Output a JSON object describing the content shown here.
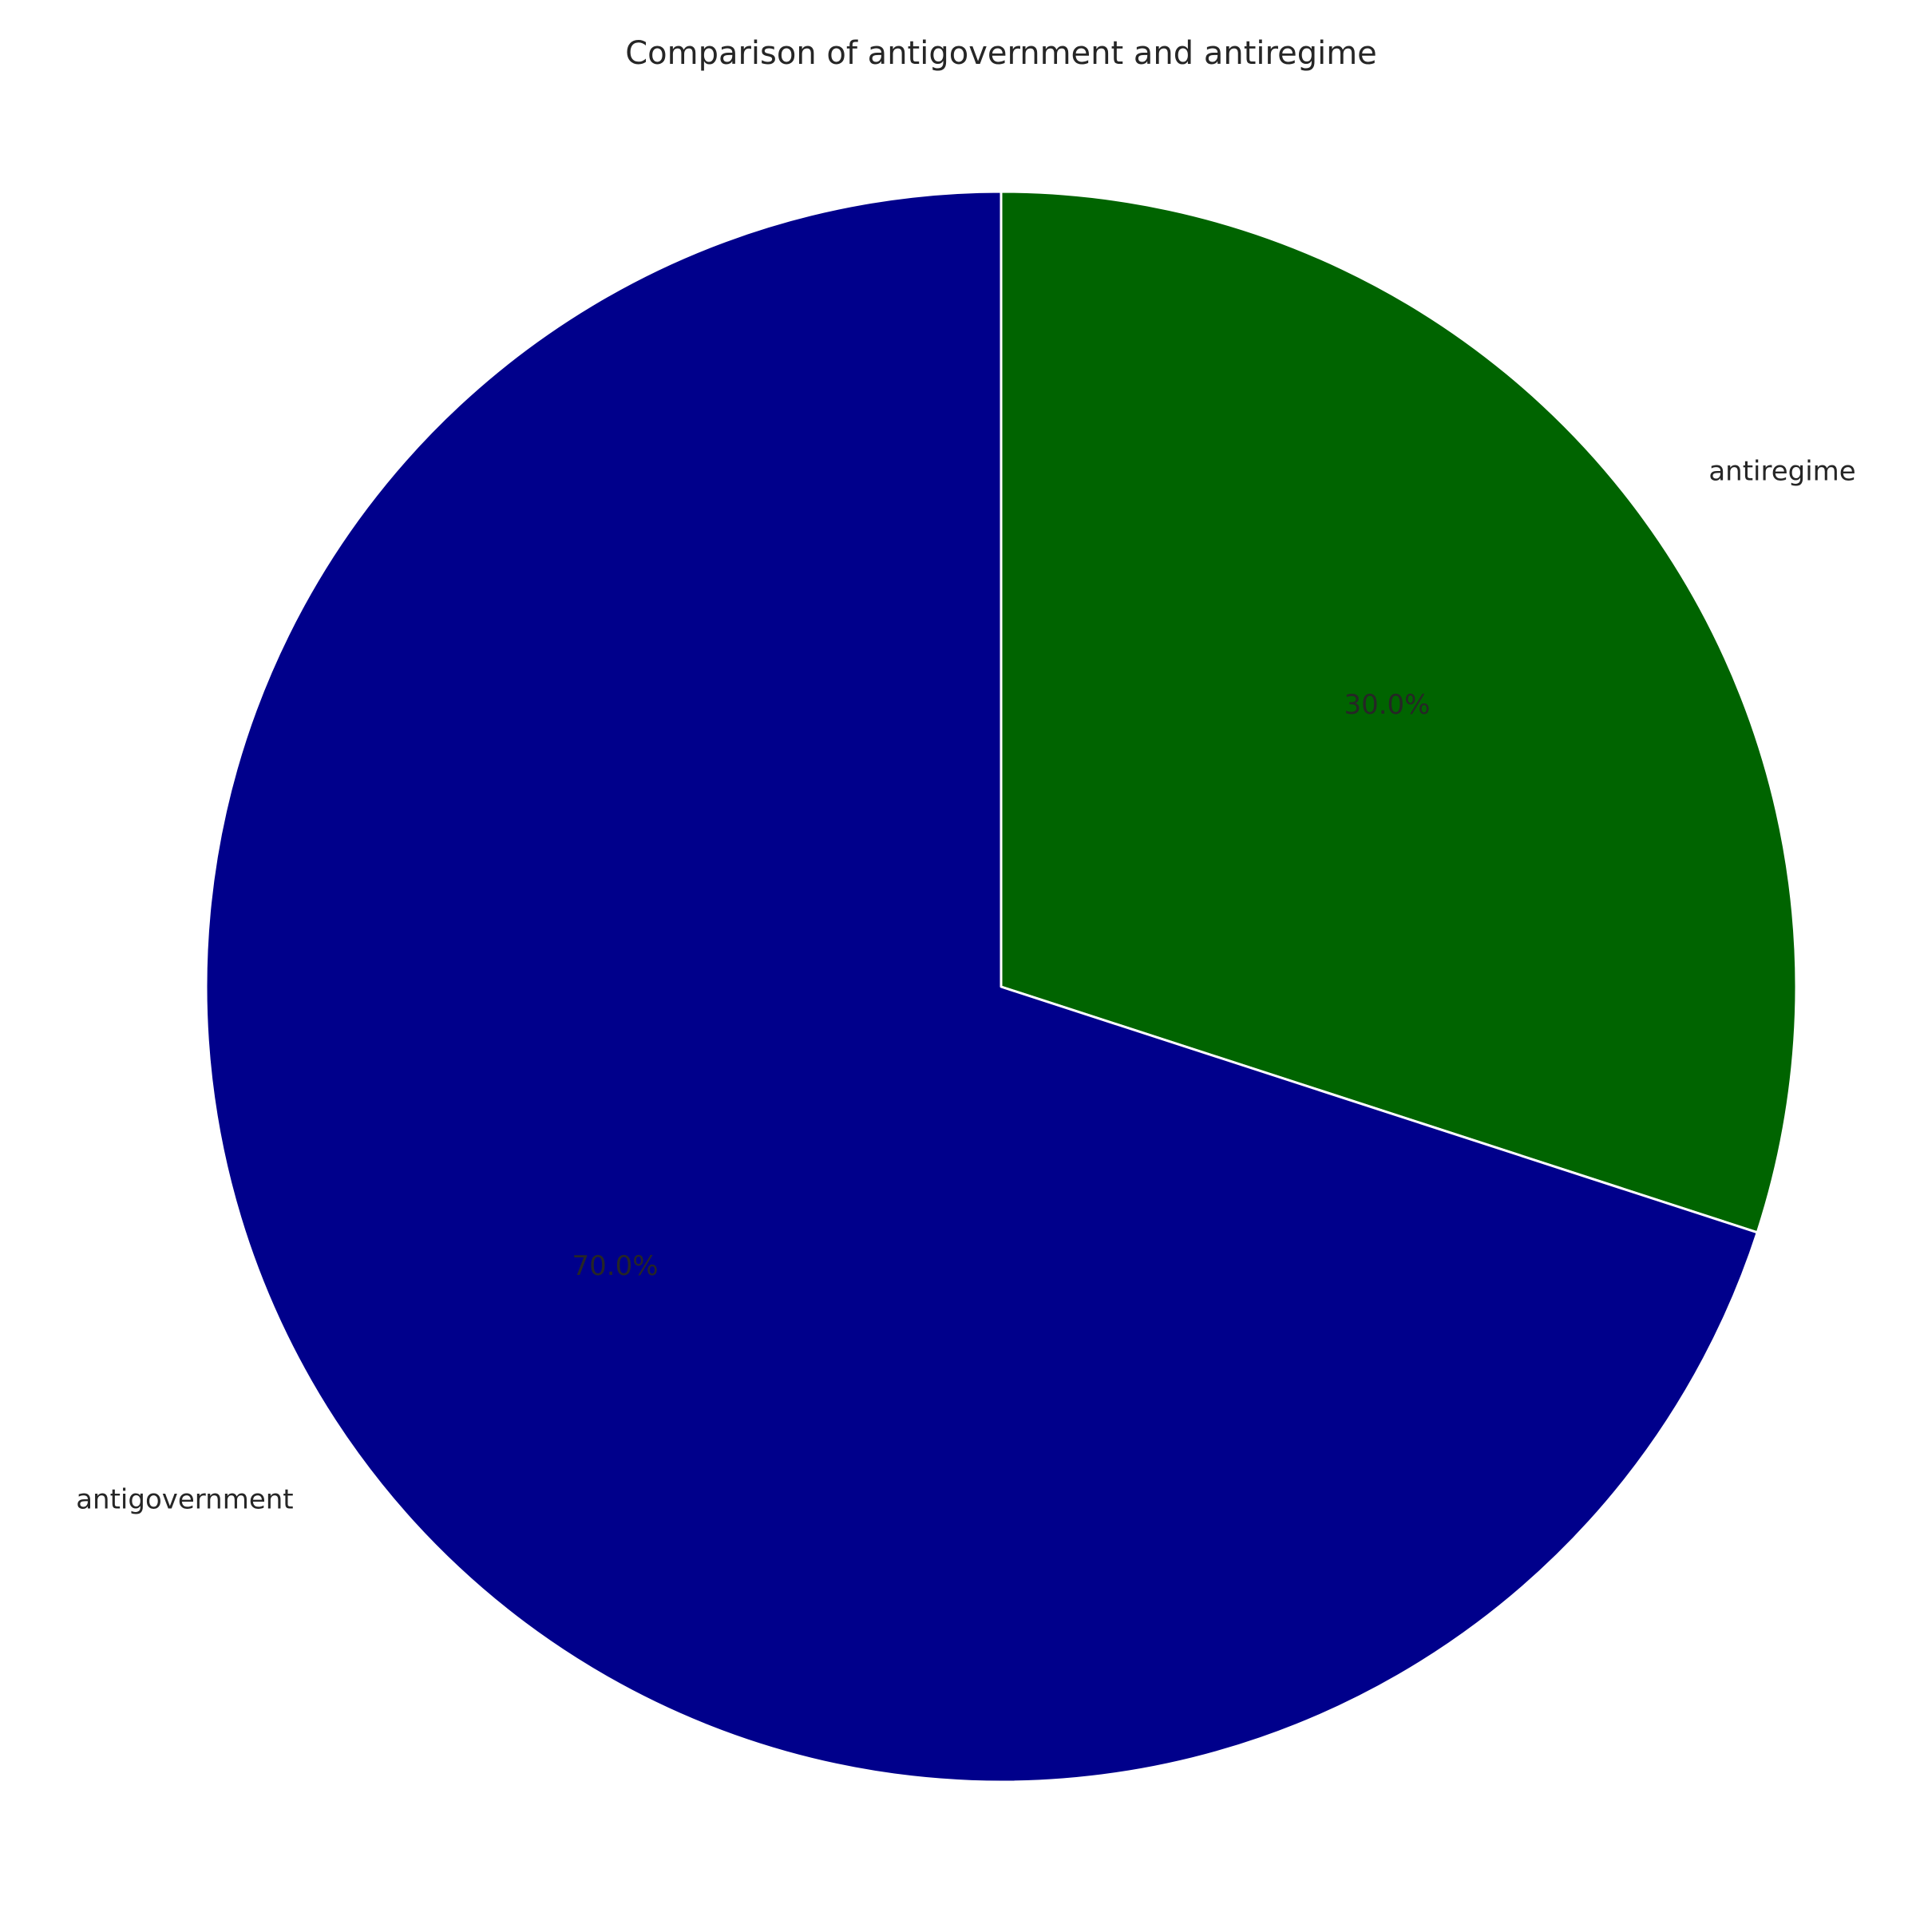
{
  "chart_data": {
    "type": "pie",
    "title": "Comparison of antigovernment and antiregime",
    "start_angle_deg": 90,
    "direction": "clockwise",
    "slices": [
      {
        "label": "antiregime",
        "value": 30.0,
        "pct_label": "30.0%",
        "color": "#006400"
      },
      {
        "label": "antigovernment",
        "value": 70.0,
        "pct_label": "70.0%",
        "color": "#00008B"
      }
    ],
    "edge_color": "#ffffff"
  }
}
